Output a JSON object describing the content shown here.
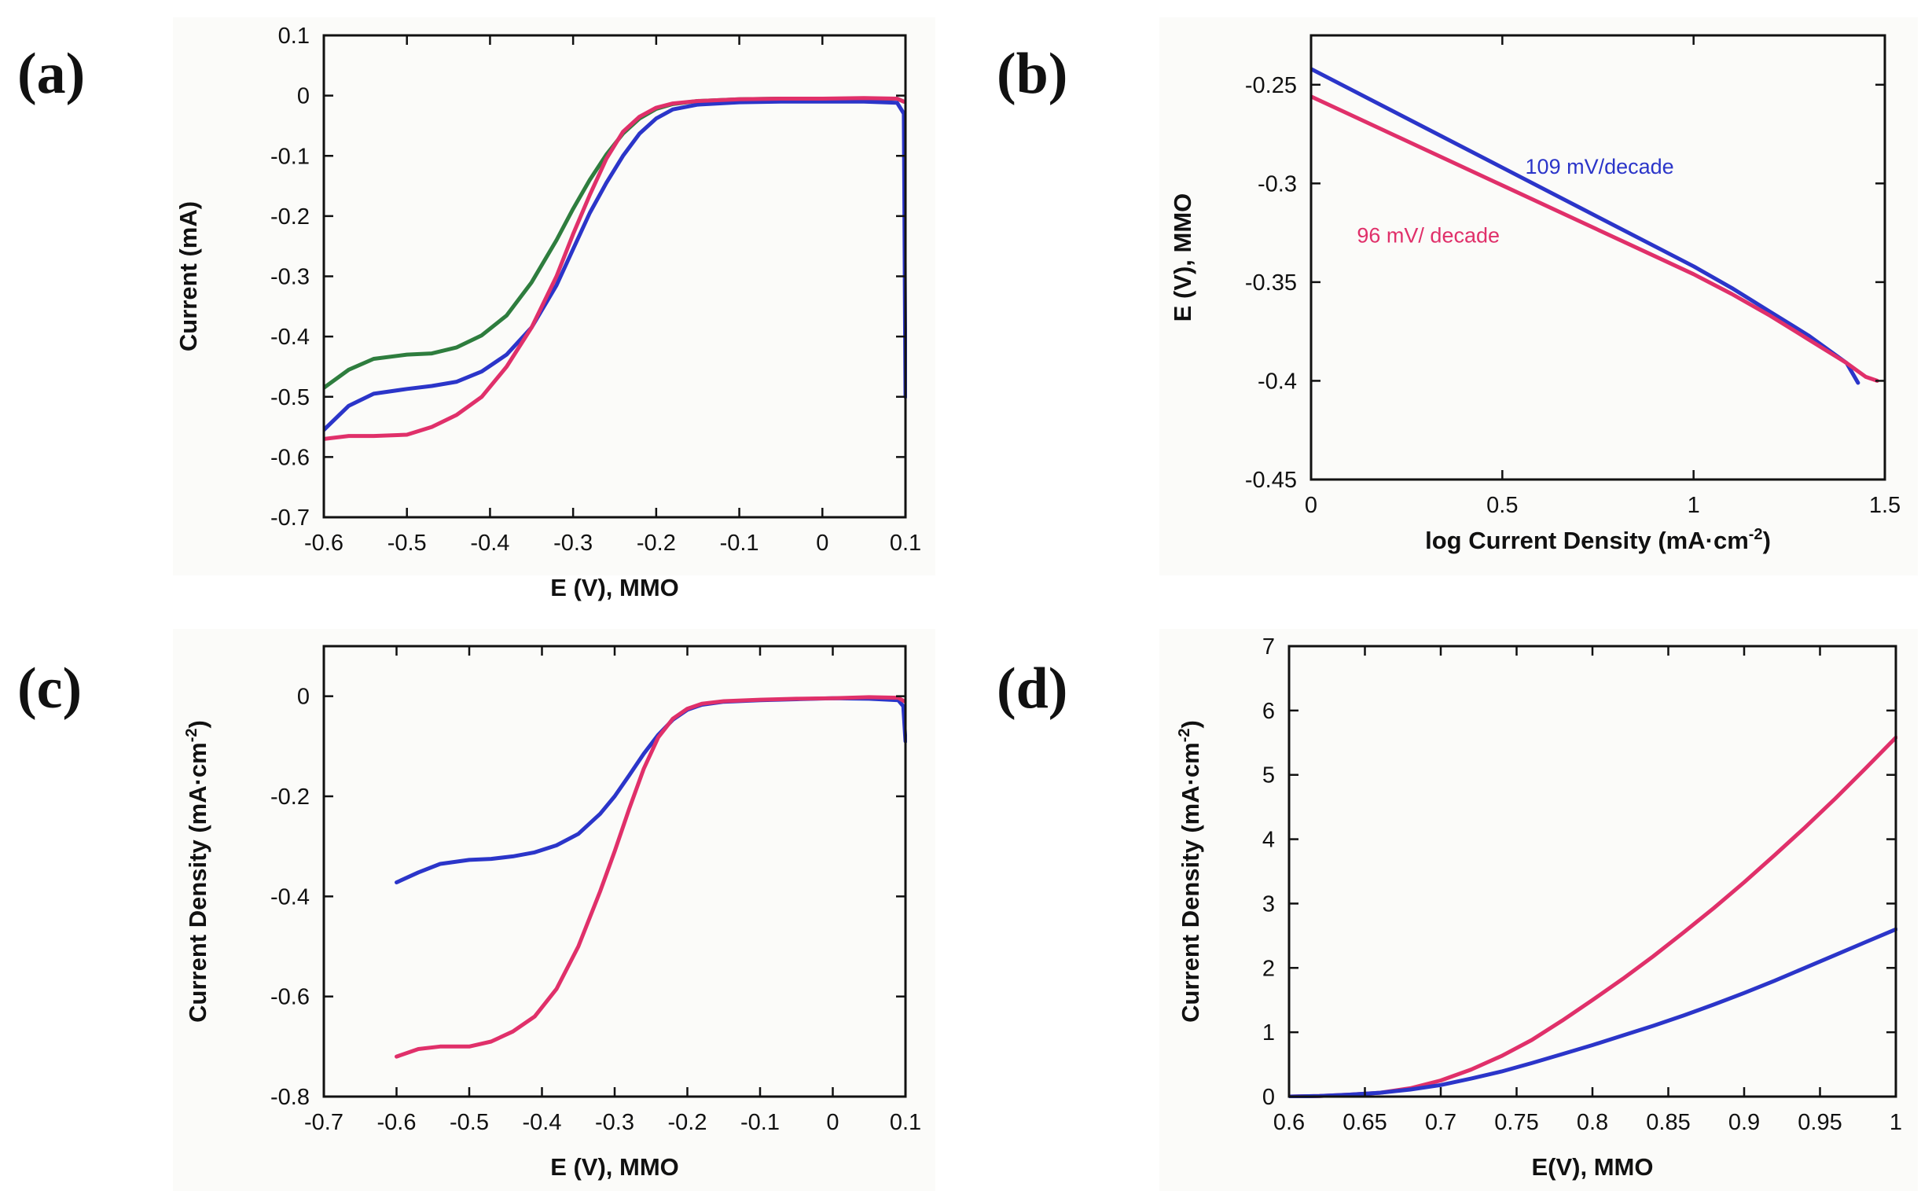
{
  "chart_data": [
    {
      "panel": "(a)",
      "type": "line",
      "title": "",
      "xlabel": "E (V), MMO",
      "ylabel": "Current (mA)",
      "xlim": [
        -0.6,
        0.1
      ],
      "ylim": [
        -0.7,
        0.1
      ],
      "xticks": [
        "-0.6",
        "-0.5",
        "-0.4",
        "-0.3",
        "-0.2",
        "-0.1",
        "0",
        "0.1"
      ],
      "yticks": [
        "0.1",
        "0",
        "-0.1",
        "-0.2",
        "-0.3",
        "-0.4",
        "-0.5",
        "-0.6",
        "-0.7"
      ],
      "xtick_values": [
        -0.6,
        -0.5,
        -0.4,
        -0.3,
        -0.2,
        -0.1,
        0,
        0.1
      ],
      "ytick_values": [
        0.1,
        0,
        -0.1,
        -0.2,
        -0.3,
        -0.4,
        -0.5,
        -0.6,
        -0.7
      ],
      "series": [
        {
          "name": "green",
          "color": "#2e7d3e",
          "x": [
            -0.6,
            -0.57,
            -0.54,
            -0.5,
            -0.47,
            -0.44,
            -0.41,
            -0.38,
            -0.35,
            -0.32,
            -0.3,
            -0.28,
            -0.26,
            -0.24,
            -0.22,
            -0.2,
            -0.18,
            -0.15,
            -0.1,
            -0.05,
            0,
            0.05,
            0.09,
            0.098
          ],
          "y": [
            -0.485,
            -0.455,
            -0.437,
            -0.43,
            -0.428,
            -0.418,
            -0.398,
            -0.365,
            -0.31,
            -0.24,
            -0.188,
            -0.14,
            -0.098,
            -0.063,
            -0.038,
            -0.022,
            -0.014,
            -0.009,
            -0.006,
            -0.005,
            -0.005,
            -0.005,
            -0.005,
            -0.01
          ]
        },
        {
          "name": "blue",
          "color": "#2b35c9",
          "x": [
            -0.6,
            -0.57,
            -0.54,
            -0.5,
            -0.47,
            -0.44,
            -0.41,
            -0.38,
            -0.35,
            -0.32,
            -0.3,
            -0.28,
            -0.26,
            -0.24,
            -0.22,
            -0.2,
            -0.18,
            -0.15,
            -0.1,
            -0.05,
            0,
            0.05,
            0.09,
            0.098,
            0.1
          ],
          "y": [
            -0.555,
            -0.515,
            -0.495,
            -0.487,
            -0.482,
            -0.475,
            -0.458,
            -0.43,
            -0.385,
            -0.315,
            -0.255,
            -0.195,
            -0.145,
            -0.1,
            -0.063,
            -0.038,
            -0.023,
            -0.015,
            -0.011,
            -0.01,
            -0.01,
            -0.01,
            -0.012,
            -0.03,
            -0.5
          ]
        },
        {
          "name": "pink",
          "color": "#e0306a",
          "x": [
            -0.6,
            -0.57,
            -0.54,
            -0.5,
            -0.47,
            -0.44,
            -0.41,
            -0.38,
            -0.35,
            -0.32,
            -0.3,
            -0.28,
            -0.26,
            -0.24,
            -0.22,
            -0.2,
            -0.18,
            -0.15,
            -0.1,
            -0.05,
            0,
            0.05,
            0.09,
            0.098
          ],
          "y": [
            -0.57,
            -0.565,
            -0.565,
            -0.563,
            -0.55,
            -0.53,
            -0.5,
            -0.45,
            -0.385,
            -0.3,
            -0.23,
            -0.165,
            -0.105,
            -0.06,
            -0.035,
            -0.02,
            -0.013,
            -0.009,
            -0.006,
            -0.005,
            -0.005,
            -0.004,
            -0.005,
            -0.01
          ]
        }
      ],
      "annotations": []
    },
    {
      "panel": "(b)",
      "type": "line",
      "title": "",
      "xlabel": "log Current Density (mA·cm",
      "xlabel_sup": "-2",
      "xlabel_end": ")",
      "ylabel": "E (V), MMO",
      "xlim": [
        0,
        1.5
      ],
      "ylim": [
        -0.45,
        -0.225
      ],
      "xticks": [
        "0",
        "0.5",
        "1",
        "1.5"
      ],
      "yticks": [
        "-0.25",
        "-0.3",
        "-0.35",
        "-0.4",
        "-0.45"
      ],
      "xtick_values": [
        0,
        0.5,
        1,
        1.5
      ],
      "ytick_values": [
        -0.25,
        -0.3,
        -0.35,
        -0.4,
        -0.45
      ],
      "series": [
        {
          "name": "blue",
          "color": "#2b35c9",
          "x": [
            0,
            0.1,
            0.2,
            0.3,
            0.5,
            0.7,
            0.9,
            1.0,
            1.1,
            1.2,
            1.3,
            1.4,
            1.43
          ],
          "y": [
            -0.242,
            -0.252,
            -0.262,
            -0.272,
            -0.292,
            -0.312,
            -0.332,
            -0.342,
            -0.353,
            -0.365,
            -0.377,
            -0.391,
            -0.401
          ]
        },
        {
          "name": "pink",
          "color": "#e0306a",
          "x": [
            0,
            0.1,
            0.2,
            0.3,
            0.5,
            0.7,
            0.9,
            1.0,
            1.1,
            1.2,
            1.3,
            1.4,
            1.45,
            1.48
          ],
          "y": [
            -0.256,
            -0.265,
            -0.274,
            -0.283,
            -0.301,
            -0.319,
            -0.337,
            -0.346,
            -0.356,
            -0.367,
            -0.379,
            -0.391,
            -0.398,
            -0.4
          ]
        }
      ],
      "annotations": [
        {
          "text": "109 mV/decade",
          "color": "#2b35c9",
          "x": 0.56,
          "y": -0.295
        },
        {
          "text": "96 mV/ decade",
          "color": "#e0306a",
          "x": 0.12,
          "y": -0.33
        }
      ]
    },
    {
      "panel": "(c)",
      "type": "line",
      "title": "",
      "xlabel": "E (V), MMO",
      "ylabel": "Current Density (mA·cm",
      "ylabel_sup": "-2",
      "ylabel_end": ")",
      "xlim": [
        -0.7,
        0.1
      ],
      "ylim": [
        -0.8,
        0.1
      ],
      "xticks": [
        "-0.7",
        "-0.6",
        "-0.5",
        "-0.4",
        "-0.3",
        "-0.2",
        "-0.1",
        "0",
        "0.1"
      ],
      "yticks": [
        "0",
        "-0.2",
        "-0.4",
        "-0.6",
        "-0.8"
      ],
      "xtick_values": [
        -0.7,
        -0.6,
        -0.5,
        -0.4,
        -0.3,
        -0.2,
        -0.1,
        0,
        0.1
      ],
      "ytick_values": [
        0,
        -0.2,
        -0.4,
        -0.6,
        -0.8
      ],
      "series": [
        {
          "name": "blue",
          "color": "#2b35c9",
          "x": [
            -0.6,
            -0.57,
            -0.54,
            -0.5,
            -0.47,
            -0.44,
            -0.41,
            -0.38,
            -0.35,
            -0.32,
            -0.3,
            -0.28,
            -0.26,
            -0.24,
            -0.22,
            -0.2,
            -0.18,
            -0.15,
            -0.1,
            -0.05,
            0,
            0.05,
            0.09,
            0.097,
            0.1
          ],
          "y": [
            -0.372,
            -0.352,
            -0.335,
            -0.327,
            -0.325,
            -0.32,
            -0.312,
            -0.298,
            -0.275,
            -0.235,
            -0.2,
            -0.158,
            -0.115,
            -0.077,
            -0.047,
            -0.027,
            -0.017,
            -0.011,
            -0.008,
            -0.006,
            -0.004,
            -0.005,
            -0.008,
            -0.02,
            -0.09
          ]
        },
        {
          "name": "pink",
          "color": "#e0306a",
          "x": [
            -0.6,
            -0.57,
            -0.54,
            -0.5,
            -0.47,
            -0.44,
            -0.41,
            -0.38,
            -0.35,
            -0.32,
            -0.3,
            -0.28,
            -0.26,
            -0.24,
            -0.22,
            -0.2,
            -0.18,
            -0.15,
            -0.1,
            -0.05,
            0,
            0.05,
            0.09,
            0.098
          ],
          "y": [
            -0.72,
            -0.705,
            -0.7,
            -0.7,
            -0.69,
            -0.67,
            -0.64,
            -0.585,
            -0.5,
            -0.39,
            -0.31,
            -0.225,
            -0.145,
            -0.082,
            -0.045,
            -0.025,
            -0.015,
            -0.01,
            -0.007,
            -0.005,
            -0.004,
            -0.002,
            -0.003,
            -0.01
          ]
        }
      ],
      "annotations": []
    },
    {
      "panel": "(d)",
      "type": "line",
      "title": "",
      "xlabel": "E(V), MMO",
      "ylabel": "Current Density (mA·cm",
      "ylabel_sup": "-2",
      "ylabel_end": ")",
      "xlim": [
        0.6,
        1.0
      ],
      "ylim": [
        0,
        7
      ],
      "xticks": [
        "0.6",
        "0.65",
        "0.7",
        "0.75",
        "0.8",
        "0.85",
        "0.9",
        "0.95",
        "1"
      ],
      "yticks": [
        "0",
        "1",
        "2",
        "3",
        "4",
        "5",
        "6",
        "7"
      ],
      "xtick_values": [
        0.6,
        0.65,
        0.7,
        0.75,
        0.8,
        0.85,
        0.9,
        0.95,
        1.0
      ],
      "ytick_values": [
        0,
        1,
        2,
        3,
        4,
        5,
        6,
        7
      ],
      "series": [
        {
          "name": "pink",
          "color": "#e0306a",
          "x": [
            0.6,
            0.62,
            0.64,
            0.66,
            0.68,
            0.7,
            0.72,
            0.74,
            0.76,
            0.78,
            0.8,
            0.82,
            0.84,
            0.86,
            0.88,
            0.9,
            0.92,
            0.94,
            0.96,
            0.98,
            1.0
          ],
          "y": [
            0.0,
            0.01,
            0.03,
            0.06,
            0.13,
            0.25,
            0.42,
            0.63,
            0.88,
            1.18,
            1.5,
            1.83,
            2.18,
            2.55,
            2.93,
            3.33,
            3.75,
            4.18,
            4.63,
            5.1,
            5.58
          ]
        },
        {
          "name": "blue",
          "color": "#2b35c9",
          "x": [
            0.6,
            0.62,
            0.64,
            0.66,
            0.68,
            0.7,
            0.72,
            0.74,
            0.76,
            0.78,
            0.8,
            0.82,
            0.84,
            0.86,
            0.88,
            0.9,
            0.92,
            0.94,
            0.96,
            0.98,
            1.0
          ],
          "y": [
            0.0,
            0.01,
            0.03,
            0.06,
            0.11,
            0.18,
            0.28,
            0.39,
            0.52,
            0.66,
            0.8,
            0.95,
            1.1,
            1.26,
            1.43,
            1.61,
            1.8,
            2.0,
            2.2,
            2.4,
            2.6
          ]
        }
      ],
      "annotations": []
    }
  ]
}
